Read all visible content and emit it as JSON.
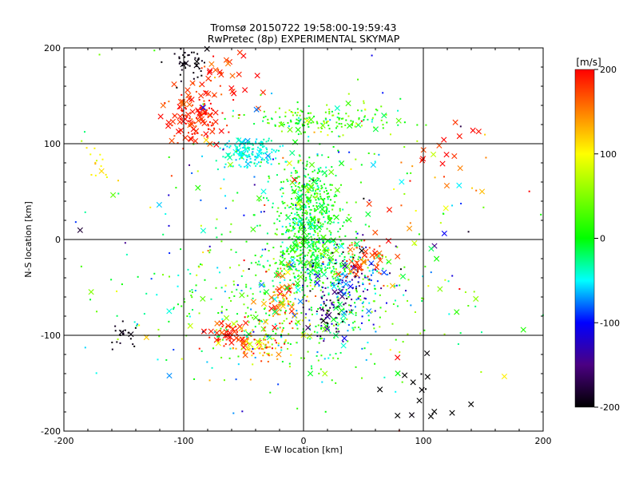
{
  "chart_data": {
    "type": "scatter",
    "title_line1": "Tromsø 20150722 19:58:00-19:59:43",
    "title_line2": "RwPretec (8p) EXPERIMENTAL SKYMAP",
    "xlabel": "E-W location [km]",
    "ylabel": "N-S location [km]",
    "xlim": [
      -200,
      200
    ],
    "ylim": [
      -200,
      200
    ],
    "x_ticks": [
      "-200",
      "-100",
      "0",
      "100",
      "200"
    ],
    "y_ticks": [
      "-200",
      "-100",
      "0",
      "100",
      "200"
    ],
    "grid": true,
    "colorbar": {
      "label": "[m/s]",
      "range": [
        -200,
        200
      ],
      "ticks": [
        "200",
        "100",
        "0",
        "-100",
        "-200"
      ]
    },
    "marker_legend": "dots and crosses = detections, color = radial velocity [m/s]",
    "clusters": [
      {
        "cx": 5,
        "cy": 30,
        "sx": 14,
        "sy": 30,
        "n": 520,
        "v": 0,
        "vs": 25,
        "cross": 0.08
      },
      {
        "cx": 10,
        "cy": -20,
        "sx": 18,
        "sy": 14,
        "n": 260,
        "v": 5,
        "vs": 30,
        "cross": 0.08
      },
      {
        "cx": -10,
        "cy": -75,
        "sx": 55,
        "sy": 35,
        "n": 420,
        "v": 10,
        "vs": 45,
        "cross": 0.1
      },
      {
        "cx": -60,
        "cy": -100,
        "sx": 10,
        "sy": 8,
        "n": 60,
        "v": 185,
        "vs": 15,
        "cross": 0.45
      },
      {
        "cx": -35,
        "cy": -110,
        "sx": 12,
        "sy": 8,
        "n": 80,
        "v": 130,
        "vs": 40,
        "cross": 0.25
      },
      {
        "cx": -20,
        "cy": -70,
        "sx": 10,
        "sy": 14,
        "n": 70,
        "v": 150,
        "vs": 40,
        "cross": 0.3
      },
      {
        "cx": 40,
        "cy": -40,
        "sx": 18,
        "sy": 20,
        "n": 140,
        "v": -110,
        "vs": 55,
        "cross": 0.12
      },
      {
        "cx": 50,
        "cy": -20,
        "sx": 12,
        "sy": 12,
        "n": 60,
        "v": 175,
        "vs": 20,
        "cross": 0.35
      },
      {
        "cx": 20,
        "cy": -75,
        "sx": 10,
        "sy": 12,
        "n": 50,
        "v": -170,
        "vs": 25,
        "cross": 0.15
      },
      {
        "cx": -45,
        "cy": 90,
        "sx": 12,
        "sy": 8,
        "n": 170,
        "v": -45,
        "vs": 12,
        "cross": 0.08
      },
      {
        "cx": 15,
        "cy": 125,
        "sx": 30,
        "sy": 7,
        "n": 170,
        "v": 20,
        "vs": 35,
        "cross": 0.08
      },
      {
        "cx": -90,
        "cy": 125,
        "sx": 12,
        "sy": 14,
        "n": 130,
        "v": 185,
        "vs": 15,
        "cross": 0.45
      },
      {
        "cx": -95,
        "cy": 185,
        "sx": 8,
        "sy": 10,
        "n": 45,
        "v": -195,
        "vs": 5,
        "cross": 0.1
      },
      {
        "cx": -70,
        "cy": 165,
        "sx": 15,
        "sy": 20,
        "n": 40,
        "v": 185,
        "vs": 20,
        "cross": 0.6
      },
      {
        "cx": -150,
        "cy": -100,
        "sx": 6,
        "sy": 6,
        "n": 20,
        "v": -195,
        "vs": 5,
        "cross": 0.1
      },
      {
        "cx": -170,
        "cy": 75,
        "sx": 6,
        "sy": 10,
        "n": 15,
        "v": 105,
        "vs": 10,
        "cross": 0.1
      },
      {
        "cx": 120,
        "cy": 75,
        "sx": 25,
        "sy": 25,
        "n": 25,
        "v": 175,
        "vs": 30,
        "cross": 0.7
      },
      {
        "cx": 100,
        "cy": -170,
        "sx": 15,
        "sy": 20,
        "n": 15,
        "v": -200,
        "vs": 5,
        "cross": 0.7
      },
      {
        "cx": 0,
        "cy": 0,
        "sx": 90,
        "sy": 80,
        "n": 300,
        "v": 0,
        "vs": 90,
        "cross": 0.18
      }
    ]
  }
}
